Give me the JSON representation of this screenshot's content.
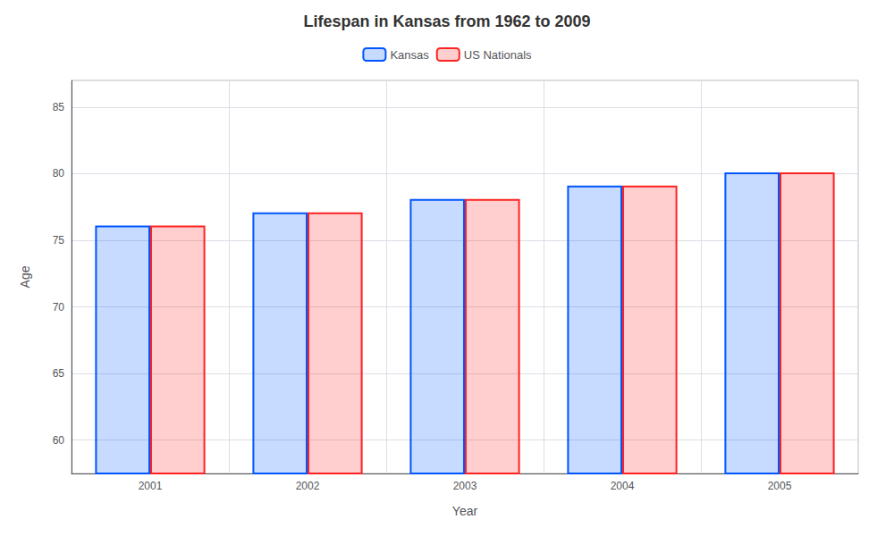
{
  "chart_data": {
    "type": "bar",
    "title": "Lifespan in Kansas from 1962 to 2009",
    "xlabel": "Year",
    "ylabel": "Age",
    "categories": [
      "2001",
      "2002",
      "2003",
      "2004",
      "2005"
    ],
    "series": [
      {
        "name": "Kansas",
        "color": "#0055ff",
        "values": [
          76.1,
          77.1,
          78.1,
          79.1,
          80.1
        ]
      },
      {
        "name": "US Nationals",
        "color": "#ff2222",
        "values": [
          76.1,
          77.1,
          78.1,
          79.1,
          80.1
        ]
      }
    ],
    "ylim": [
      57.5,
      87
    ],
    "yticks": [
      60,
      65,
      70,
      75,
      80,
      85
    ],
    "grid": true,
    "legend": "upper center"
  }
}
